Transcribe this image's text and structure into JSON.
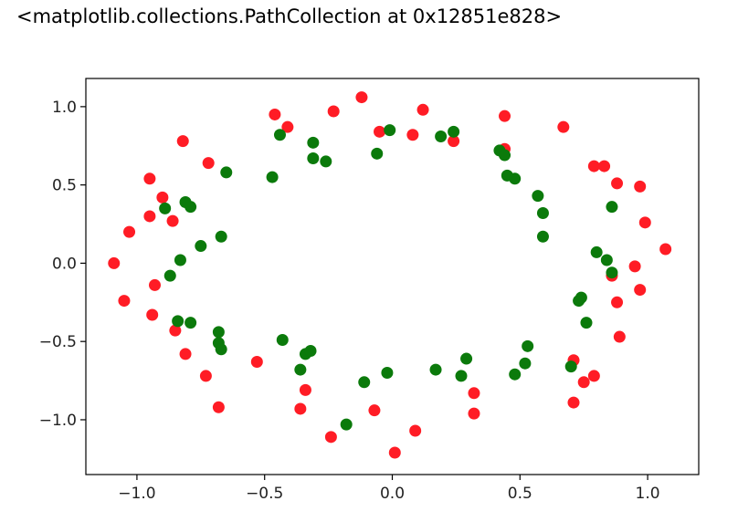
{
  "output": {
    "text": "<matplotlib.collections.PathCollection at 0x12851e828>"
  },
  "chart_data": {
    "type": "scatter",
    "title": "",
    "xlabel": "",
    "ylabel": "",
    "xlim": [
      -1.2,
      1.2
    ],
    "ylim": [
      -1.35,
      1.18
    ],
    "xticks": [
      -1.0,
      -0.5,
      0.0,
      0.5,
      1.0
    ],
    "xtick_labels": [
      "−1.0",
      "−0.5",
      "0.0",
      "0.5",
      "1.0"
    ],
    "yticks": [
      -1.0,
      -0.5,
      0.0,
      0.5,
      1.0
    ],
    "ytick_labels": [
      "−1.0",
      "−0.5",
      "0.0",
      "0.5",
      "1.0"
    ],
    "grid": false,
    "series": [
      {
        "color": "#ff1c25",
        "points": [
          [
            -1.09,
            0.0
          ],
          [
            -1.05,
            -0.24
          ],
          [
            -1.03,
            0.2
          ],
          [
            -0.95,
            0.3
          ],
          [
            -0.95,
            0.54
          ],
          [
            -0.94,
            -0.33
          ],
          [
            -0.93,
            -0.14
          ],
          [
            -0.9,
            0.42
          ],
          [
            -0.86,
            0.27
          ],
          [
            -0.85,
            -0.43
          ],
          [
            -0.82,
            0.78
          ],
          [
            -0.81,
            -0.58
          ],
          [
            -0.73,
            -0.72
          ],
          [
            -0.72,
            0.64
          ],
          [
            -0.68,
            -0.92
          ],
          [
            -0.53,
            -0.63
          ],
          [
            -0.46,
            0.95
          ],
          [
            -0.41,
            0.87
          ],
          [
            -0.36,
            -0.93
          ],
          [
            -0.34,
            -0.81
          ],
          [
            -0.23,
            0.97
          ],
          [
            -0.24,
            -1.11
          ],
          [
            -0.12,
            1.06
          ],
          [
            -0.07,
            -0.94
          ],
          [
            -0.05,
            0.84
          ],
          [
            0.01,
            -1.21
          ],
          [
            0.08,
            0.82
          ],
          [
            0.09,
            -1.07
          ],
          [
            0.12,
            0.98
          ],
          [
            0.24,
            0.78
          ],
          [
            0.32,
            -0.83
          ],
          [
            0.32,
            -0.96
          ],
          [
            0.44,
            0.94
          ],
          [
            0.44,
            0.73
          ],
          [
            0.67,
            0.87
          ],
          [
            0.71,
            -0.62
          ],
          [
            0.71,
            -0.89
          ],
          [
            0.75,
            -0.76
          ],
          [
            0.79,
            -0.72
          ],
          [
            0.79,
            0.62
          ],
          [
            0.83,
            0.62
          ],
          [
            0.86,
            -0.08
          ],
          [
            0.88,
            -0.25
          ],
          [
            0.88,
            0.51
          ],
          [
            0.89,
            -0.47
          ],
          [
            0.95,
            -0.02
          ],
          [
            0.97,
            -0.17
          ],
          [
            0.97,
            0.49
          ],
          [
            0.99,
            0.26
          ],
          [
            1.07,
            0.09
          ]
        ]
      },
      {
        "color": "#0b7a0b",
        "points": [
          [
            -0.89,
            0.35
          ],
          [
            -0.87,
            -0.08
          ],
          [
            -0.84,
            -0.37
          ],
          [
            -0.83,
            0.02
          ],
          [
            -0.81,
            0.39
          ],
          [
            -0.79,
            0.36
          ],
          [
            -0.79,
            -0.38
          ],
          [
            -0.75,
            0.11
          ],
          [
            -0.68,
            -0.44
          ],
          [
            -0.68,
            -0.51
          ],
          [
            -0.67,
            -0.55
          ],
          [
            -0.67,
            0.17
          ],
          [
            -0.65,
            0.58
          ],
          [
            -0.47,
            0.55
          ],
          [
            -0.44,
            0.82
          ],
          [
            -0.43,
            -0.49
          ],
          [
            -0.36,
            -0.68
          ],
          [
            -0.34,
            -0.58
          ],
          [
            -0.32,
            -0.56
          ],
          [
            -0.31,
            0.77
          ],
          [
            -0.31,
            0.67
          ],
          [
            -0.26,
            0.65
          ],
          [
            -0.18,
            -1.03
          ],
          [
            -0.11,
            -0.76
          ],
          [
            -0.06,
            0.7
          ],
          [
            -0.02,
            -0.7
          ],
          [
            -0.01,
            0.85
          ],
          [
            0.17,
            -0.68
          ],
          [
            0.19,
            0.81
          ],
          [
            0.24,
            0.84
          ],
          [
            0.27,
            -0.72
          ],
          [
            0.29,
            -0.61
          ],
          [
            0.42,
            0.72
          ],
          [
            0.44,
            0.69
          ],
          [
            0.45,
            0.56
          ],
          [
            0.48,
            -0.71
          ],
          [
            0.48,
            0.54
          ],
          [
            0.52,
            -0.64
          ],
          [
            0.53,
            -0.53
          ],
          [
            0.57,
            0.43
          ],
          [
            0.59,
            0.32
          ],
          [
            0.59,
            0.17
          ],
          [
            0.7,
            -0.66
          ],
          [
            0.73,
            -0.24
          ],
          [
            0.74,
            -0.22
          ],
          [
            0.76,
            -0.38
          ],
          [
            0.8,
            0.07
          ],
          [
            0.84,
            0.02
          ],
          [
            0.86,
            -0.06
          ],
          [
            0.86,
            0.36
          ]
        ]
      }
    ]
  }
}
